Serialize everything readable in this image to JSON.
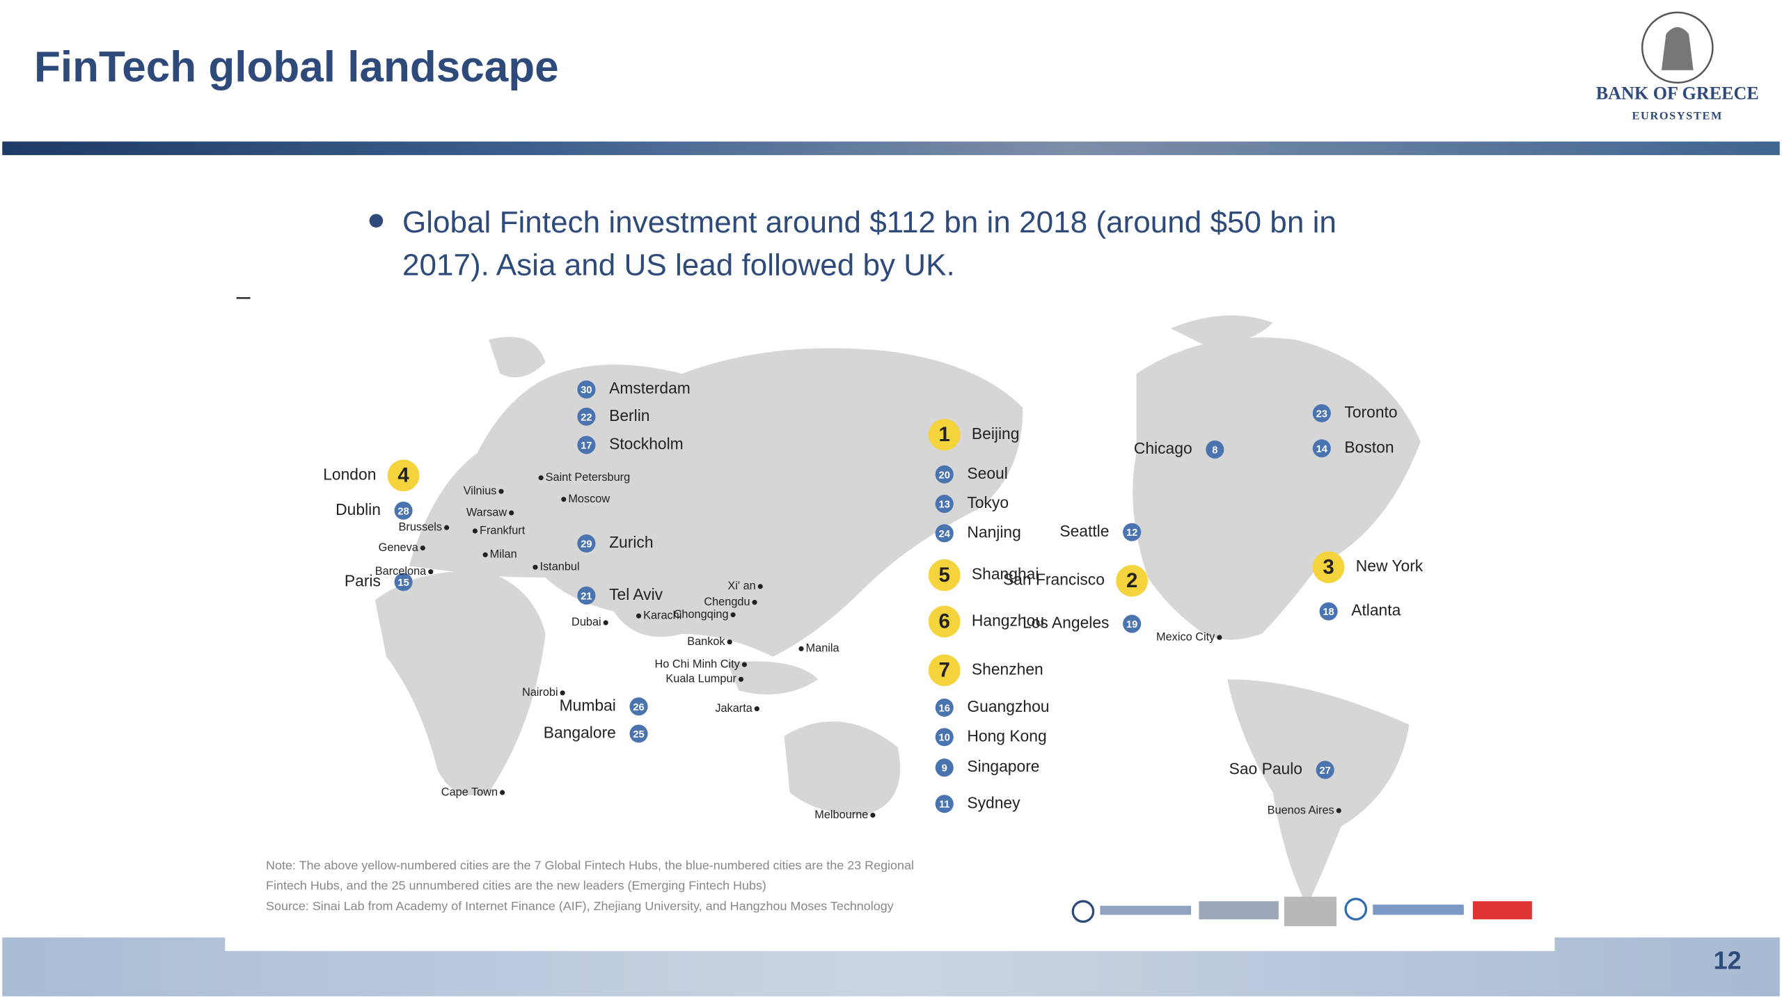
{
  "header": {
    "title": "FinTech global landscape",
    "logo": {
      "name": "BANK OF GREECE",
      "sub": "EUROSYSTEM"
    }
  },
  "marker": "–",
  "bullet": {
    "lines": [
      "Global Fintech investment around $112 bn in 2018 (around $50 bn in",
      "2017). Asia and US lead followed by UK."
    ]
  },
  "map": {
    "hubs": [
      {
        "number": "1",
        "city": "Beijing"
      },
      {
        "number": "2",
        "city": "San Francisco"
      },
      {
        "number": "3",
        "city": "New York"
      },
      {
        "number": "4",
        "city": "London"
      },
      {
        "number": "5",
        "city": "Shanghai"
      },
      {
        "number": "6",
        "city": "Hangzhou"
      },
      {
        "number": "7",
        "city": "Shenzhen"
      },
      {
        "number": "8",
        "city": "Chicago"
      },
      {
        "number": "9",
        "city": "Singapore"
      },
      {
        "number": "10",
        "city": "Hong Kong"
      },
      {
        "number": "11",
        "city": "Sydney"
      },
      {
        "number": "12",
        "city": "Seattle"
      },
      {
        "number": "13",
        "city": "Tokyo"
      },
      {
        "number": "14",
        "city": "Boston"
      },
      {
        "number": "15",
        "city": "Paris"
      },
      {
        "number": "16",
        "city": "Guangzhou"
      },
      {
        "number": "17",
        "city": "Stockholm"
      },
      {
        "number": "18",
        "city": "Atlanta"
      },
      {
        "number": "19",
        "city": "Los Angeles"
      },
      {
        "number": "20",
        "city": "Seoul"
      },
      {
        "number": "21",
        "city": "Tel Aviv"
      },
      {
        "number": "22",
        "city": "Berlin"
      },
      {
        "number": "23",
        "city": "Toronto"
      },
      {
        "number": "24",
        "city": "Nanjing"
      },
      {
        "number": "25",
        "city": "Bangalore"
      },
      {
        "number": "26",
        "city": "Mumbai"
      },
      {
        "number": "27",
        "city": "Sao Paulo"
      },
      {
        "number": "28",
        "city": "Dublin"
      },
      {
        "number": "29",
        "city": "Zurich"
      },
      {
        "number": "30",
        "city": "Amsterdam"
      }
    ],
    "cities": [
      "Saint Petersburg",
      "Moscow",
      "Vilnius",
      "Warsaw",
      "Brussels",
      "Frankfurt",
      "Geneva",
      "Milan",
      "Barcelona",
      "Istanbul",
      "Dubai",
      "Karachi",
      "Xi' an",
      "Chengdu",
      "Chongqing",
      "Bankok",
      "Manila",
      "Ho Chi Minh City",
      "Kuala Lumpur",
      "Jakarta",
      "Nairobi",
      "Cape Town",
      "Melbourne",
      "Mexico City",
      "Buenos Aires"
    ],
    "notes": [
      "Note: The above yellow-numbered cities are the 7 Global Fintech Hubs, the blue-numbered cities are the 23 Regional",
      "Fintech Hubs, and the 25 unnumbered cities are the new leaders (Emerging Fintech Hubs)",
      "Source: Sinai Lab from Academy of Internet Finance (AIF), Zhejiang University, and Hangzhou Moses Technology"
    ]
  },
  "page_number": "12"
}
